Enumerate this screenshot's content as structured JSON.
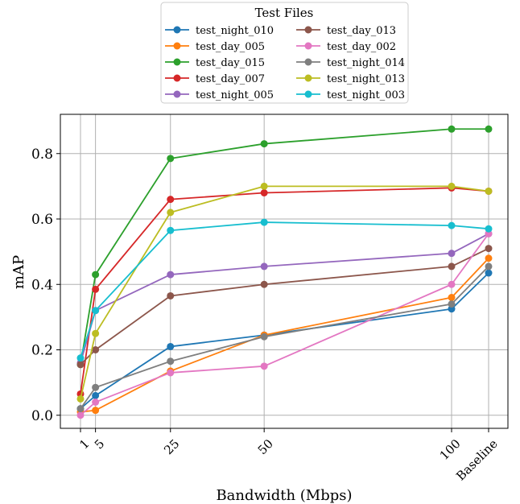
{
  "chart_data": {
    "type": "line",
    "title": "",
    "xlabel": "Bandwidth (Mbps)",
    "ylabel": "mAP",
    "x_ticks": [
      {
        "pos": 1,
        "label": "1"
      },
      {
        "pos": 5,
        "label": "5"
      },
      {
        "pos": 25,
        "label": "25"
      },
      {
        "pos": 50,
        "label": "50"
      },
      {
        "pos": 100,
        "label": "100"
      },
      {
        "pos": 110,
        "label": "Baseline"
      }
    ],
    "x": [
      1,
      5,
      25,
      50,
      100,
      110
    ],
    "y_ticks": [
      {
        "value": 0.0,
        "label": "0.0"
      },
      {
        "value": 0.2,
        "label": "0.2"
      },
      {
        "value": 0.4,
        "label": "0.4"
      },
      {
        "value": 0.6,
        "label": "0.6"
      },
      {
        "value": 0.8,
        "label": "0.8"
      }
    ],
    "ylim": [
      -0.04,
      0.92
    ],
    "grid": true,
    "legend": {
      "title": "Test Files",
      "placement": "top-center",
      "columns": 2
    },
    "series": [
      {
        "name": "test_night_010",
        "color": "#1f77b4",
        "values": [
          0.02,
          0.06,
          0.21,
          0.245,
          0.325,
          0.435
        ]
      },
      {
        "name": "test_day_005",
        "color": "#ff7f0e",
        "values": [
          0.01,
          0.015,
          0.135,
          0.245,
          0.36,
          0.48
        ]
      },
      {
        "name": "test_day_015",
        "color": "#2ca02c",
        "values": [
          0.155,
          0.43,
          0.785,
          0.83,
          0.875,
          0.875
        ]
      },
      {
        "name": "test_day_007",
        "color": "#d62728",
        "values": [
          0.065,
          0.385,
          0.66,
          0.68,
          0.695,
          0.685
        ]
      },
      {
        "name": "test_night_005",
        "color": "#9467bd",
        "values": [
          0.16,
          0.32,
          0.43,
          0.455,
          0.495,
          0.555
        ]
      },
      {
        "name": "test_day_013",
        "color": "#8c564b",
        "values": [
          0.155,
          0.2,
          0.365,
          0.4,
          0.455,
          0.51
        ]
      },
      {
        "name": "test_day_002",
        "color": "#e377c2",
        "values": [
          0.0,
          0.04,
          0.13,
          0.15,
          0.4,
          0.555
        ]
      },
      {
        "name": "test_night_014",
        "color": "#7f7f7f",
        "values": [
          0.02,
          0.085,
          0.165,
          0.24,
          0.34,
          0.455
        ]
      },
      {
        "name": "test_night_013",
        "color": "#bcbd22",
        "values": [
          0.05,
          0.25,
          0.62,
          0.7,
          0.7,
          0.685
        ]
      },
      {
        "name": "test_night_003",
        "color": "#17becf",
        "values": [
          0.175,
          0.32,
          0.565,
          0.59,
          0.58,
          0.57
        ]
      }
    ]
  }
}
